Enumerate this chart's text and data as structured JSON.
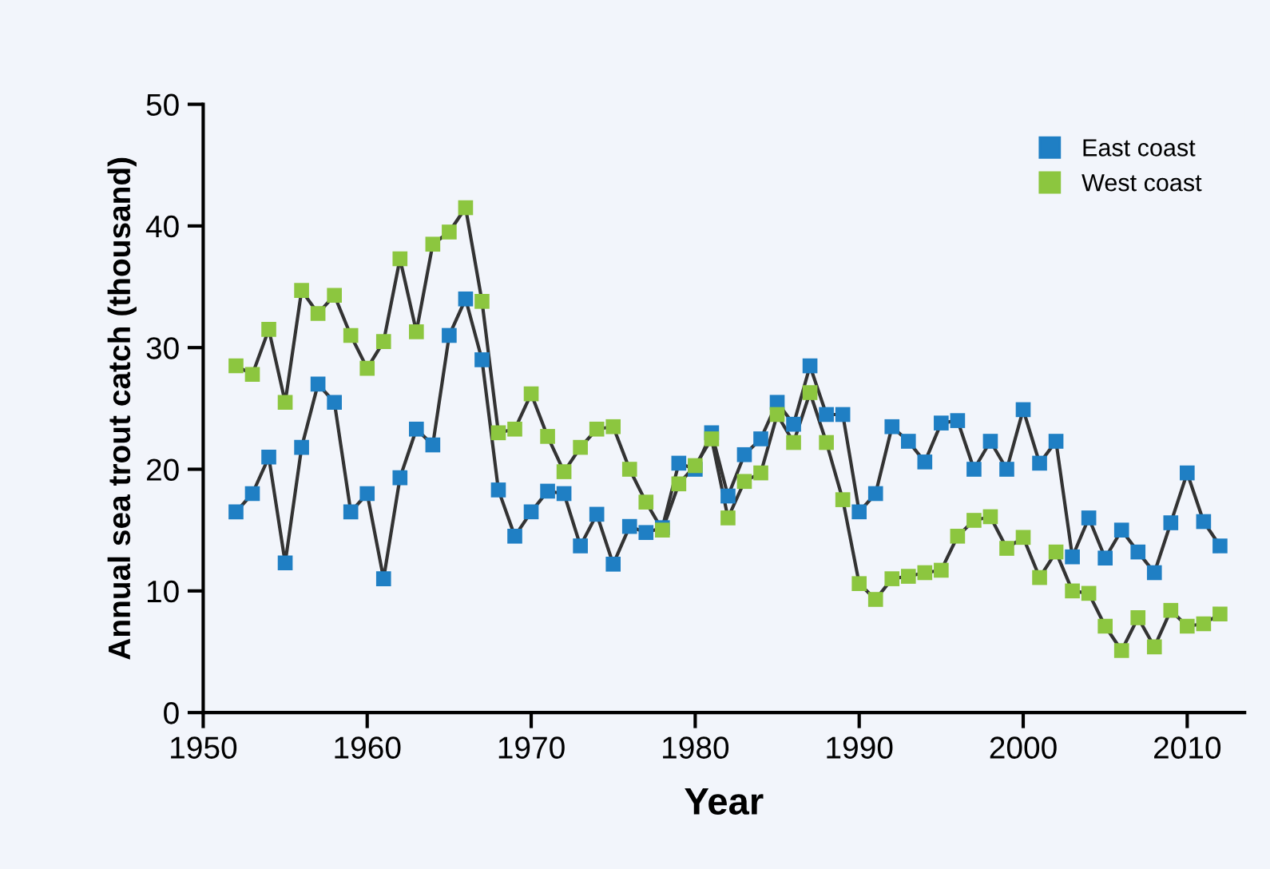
{
  "chart_data": {
    "type": "line",
    "xlabel": "Year",
    "ylabel": "Annual sea trout catch (thousand)",
    "x": [
      1952,
      1953,
      1954,
      1955,
      1956,
      1957,
      1958,
      1959,
      1960,
      1961,
      1962,
      1963,
      1964,
      1965,
      1966,
      1967,
      1968,
      1969,
      1970,
      1971,
      1972,
      1973,
      1974,
      1975,
      1976,
      1977,
      1978,
      1979,
      1980,
      1981,
      1982,
      1983,
      1984,
      1985,
      1986,
      1987,
      1988,
      1989,
      1990,
      1991,
      1992,
      1993,
      1994,
      1995,
      1996,
      1997,
      1998,
      1999,
      2000,
      2001,
      2002,
      2003,
      2004,
      2005,
      2006,
      2007,
      2008,
      2009,
      2010,
      2011,
      2012
    ],
    "series": [
      {
        "name": "East coast",
        "color": "#1f7fc4",
        "values": [
          16.5,
          18,
          21,
          12.3,
          21.8,
          27,
          25.5,
          16.5,
          18,
          11,
          19.3,
          23.3,
          22,
          31,
          34,
          29,
          18.3,
          14.5,
          16.5,
          18.2,
          18,
          13.7,
          16.3,
          12.2,
          15.3,
          14.8,
          15.2,
          20.5,
          20,
          23,
          17.8,
          21.2,
          22.5,
          25.5,
          23.7,
          28.5,
          24.5,
          24.5,
          16.5,
          18,
          23.5,
          22.3,
          20.6,
          23.8,
          24,
          20,
          22.3,
          20,
          24.9,
          20.5,
          22.3,
          12.8,
          16,
          12.7,
          15,
          13.2,
          11.5,
          15.6,
          19.7,
          15.7,
          13.7
        ]
      },
      {
        "name": "West coast",
        "color": "#8cc63f",
        "values": [
          28.5,
          27.8,
          31.5,
          25.5,
          34.7,
          32.8,
          34.3,
          31,
          28.3,
          30.5,
          37.3,
          31.3,
          38.5,
          39.5,
          41.5,
          33.8,
          23,
          23.3,
          26.2,
          22.7,
          19.8,
          21.8,
          23.3,
          23.5,
          20,
          17.3,
          15,
          18.8,
          20.3,
          22.5,
          16,
          19,
          19.7,
          24.5,
          22.2,
          26.3,
          22.2,
          17.5,
          10.6,
          9.3,
          11,
          11.2,
          11.5,
          11.7,
          14.5,
          15.8,
          16.1,
          13.5,
          14.4,
          11.1,
          13.2,
          10,
          9.8,
          7.1,
          5.1,
          7.8,
          5.4,
          8.4,
          7.1,
          7.3,
          8.1
        ]
      }
    ],
    "xlim": [
      1950,
      2013.5
    ],
    "xticks": [
      1950,
      1960,
      1970,
      1980,
      1990,
      2000,
      2010
    ],
    "ylim": [
      0,
      50
    ],
    "yticks": [
      0,
      10,
      20,
      30,
      40,
      50
    ],
    "marker": "square",
    "legend": "top right",
    "grid": false
  }
}
